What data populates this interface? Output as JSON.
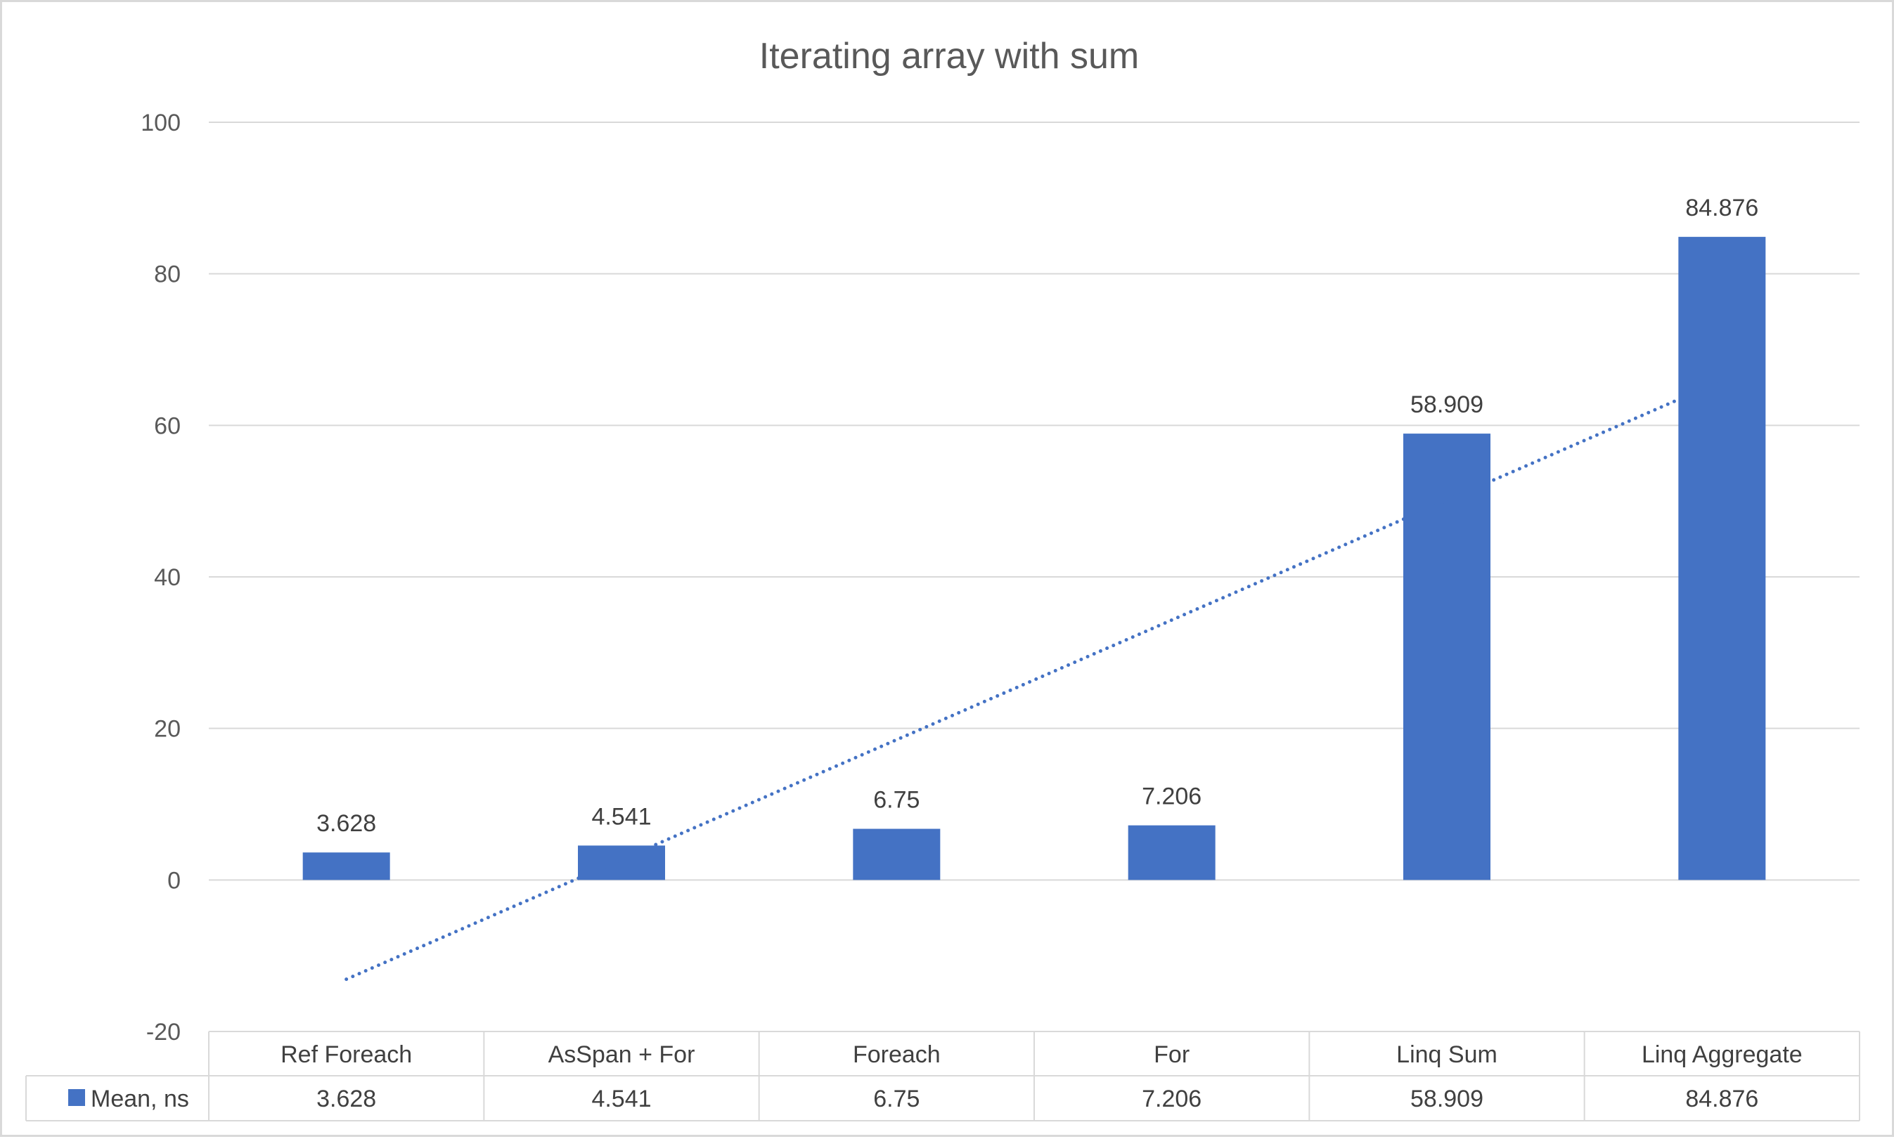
{
  "chart_data": {
    "type": "bar",
    "title": "Iterating array with sum",
    "categories": [
      "Ref Foreach",
      "AsSpan + For",
      "Foreach",
      "For",
      "Linq Sum",
      "Linq Aggregate"
    ],
    "series": [
      {
        "name": "Mean, ns",
        "values": [
          3.628,
          4.541,
          6.75,
          7.206,
          58.909,
          84.876
        ],
        "data_labels": [
          "3.628",
          "4.541",
          "6.75",
          "7.206",
          "58.909",
          "84.876"
        ],
        "color": "#4472c4"
      }
    ],
    "trendline": {
      "type": "linear",
      "style": "dotted",
      "color": "#4472c4",
      "start": {
        "category": "Ref Foreach",
        "value": -13.1
      },
      "end": {
        "category": "Linq Aggregate",
        "value": 65.9
      }
    },
    "y_ticks": [
      "-20",
      "0",
      "20",
      "40",
      "60",
      "80",
      "100"
    ],
    "ylim": [
      -20,
      100
    ],
    "y_tick_step": 20,
    "grid": true,
    "grid_color": "#d9d9d9",
    "legend": "data-table",
    "data_table": true
  }
}
